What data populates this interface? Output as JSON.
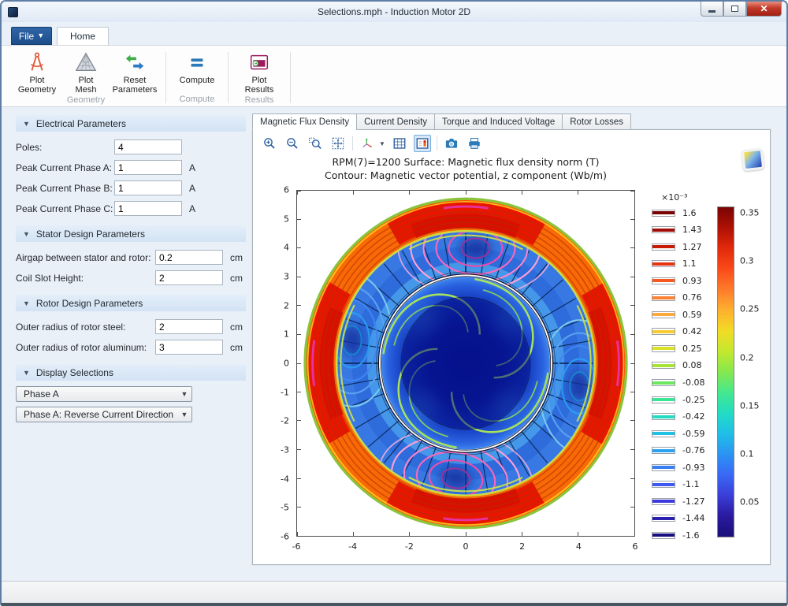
{
  "window": {
    "title": "Selections.mph - Induction Motor 2D"
  },
  "ribbon": {
    "file_label": "File",
    "tab_home": "Home",
    "groups": [
      {
        "label": "Geometry",
        "buttons": [
          {
            "label": "Plot\nGeometry",
            "icon": "compass-icon"
          },
          {
            "label": "Plot\nMesh",
            "icon": "mesh-triangle-icon"
          },
          {
            "label": "Reset\nParameters",
            "icon": "reset-arrows-icon"
          }
        ]
      },
      {
        "label": "Compute",
        "buttons": [
          {
            "label": "Compute",
            "icon": "equals-icon"
          }
        ]
      },
      {
        "label": "Results",
        "buttons": [
          {
            "label": "Plot\nResults",
            "icon": "plot-window-icon"
          }
        ]
      }
    ]
  },
  "sidebar": {
    "sections": [
      {
        "title": "Electrical Parameters",
        "fields": [
          {
            "label": "Poles:",
            "value": "4",
            "unit": ""
          },
          {
            "label": "Peak Current Phase A:",
            "value": "1",
            "unit": "A"
          },
          {
            "label": "Peak Current Phase B:",
            "value": "1",
            "unit": "A"
          },
          {
            "label": "Peak Current Phase C:",
            "value": "1",
            "unit": "A"
          }
        ]
      },
      {
        "title": "Stator Design Parameters",
        "fields": [
          {
            "label": "Airgap between stator and rotor:",
            "value": "0.2",
            "unit": "cm"
          },
          {
            "label": "Coil Slot Height:",
            "value": "2",
            "unit": "cm"
          }
        ]
      },
      {
        "title": "Rotor Design Parameters",
        "fields": [
          {
            "label": "Outer radius of rotor steel:",
            "value": "2",
            "unit": "cm"
          },
          {
            "label": "Outer radius of rotor aluminum:",
            "value": "3",
            "unit": "cm"
          }
        ]
      },
      {
        "title": "Display Selections",
        "dropdowns": [
          "Phase A",
          "Phase A: Reverse Current Direction"
        ]
      }
    ]
  },
  "main": {
    "tabs": [
      {
        "label": "Magnetic Flux Density",
        "active": true
      },
      {
        "label": "Current Density",
        "active": false
      },
      {
        "label": "Torque and Induced Voltage",
        "active": false
      },
      {
        "label": "Rotor Losses",
        "active": false
      }
    ],
    "plot": {
      "title_line1": "RPM(7)=1200   Surface: Magnetic flux density norm (T)",
      "title_line2": "Contour: Magnetic vector potential, z component (Wb/m)",
      "x_ticks": [
        "-6",
        "-4",
        "-2",
        "0",
        "2",
        "4",
        "6"
      ],
      "y_ticks": [
        "6",
        "5",
        "4",
        "3",
        "2",
        "1",
        "0",
        "-1",
        "-2",
        "-3",
        "-4",
        "-5",
        "-6"
      ],
      "contour_legend": {
        "exponent_label": "×10⁻³",
        "entries": [
          {
            "value": "1.6",
            "color": "#7a0403"
          },
          {
            "value": "1.43",
            "color": "#a30d06"
          },
          {
            "value": "1.27",
            "color": "#c91a08"
          },
          {
            "value": "1.1",
            "color": "#e6330f"
          },
          {
            "value": "0.93",
            "color": "#f65920"
          },
          {
            "value": "0.76",
            "color": "#fd8132"
          },
          {
            "value": "0.59",
            "color": "#fea93e"
          },
          {
            "value": "0.42",
            "color": "#f7cc31"
          },
          {
            "value": "0.25",
            "color": "#dce326"
          },
          {
            "value": "0.08",
            "color": "#a8e338"
          },
          {
            "value": "-0.08",
            "color": "#6ce75e"
          },
          {
            "value": "-0.25",
            "color": "#38e695"
          },
          {
            "value": "-0.42",
            "color": "#20ddc4"
          },
          {
            "value": "-0.59",
            "color": "#1fc2e5"
          },
          {
            "value": "-0.76",
            "color": "#2aa2f0"
          },
          {
            "value": "-0.93",
            "color": "#377ff4"
          },
          {
            "value": "-1.1",
            "color": "#3f5af4"
          },
          {
            "value": "-1.27",
            "color": "#3a37dd"
          },
          {
            "value": "-1.44",
            "color": "#2a1fae"
          },
          {
            "value": "-1.6",
            "color": "#190e7e"
          }
        ]
      },
      "surface_legend": {
        "labels": [
          "0.35",
          "0.3",
          "0.25",
          "0.2",
          "0.15",
          "0.1",
          "0.05"
        ],
        "gradient": [
          "#7a0403",
          "#b01005",
          "#e22a0c",
          "#fb4a18",
          "#fe7b2c",
          "#fdb02e",
          "#f2db25",
          "#c3e82e",
          "#85e84e",
          "#45e88f",
          "#22dcc4",
          "#1fbfe8",
          "#2b93f2",
          "#3a68f5",
          "#3b3ed8",
          "#2a1a9e",
          "#1a0f7a"
        ]
      }
    }
  }
}
